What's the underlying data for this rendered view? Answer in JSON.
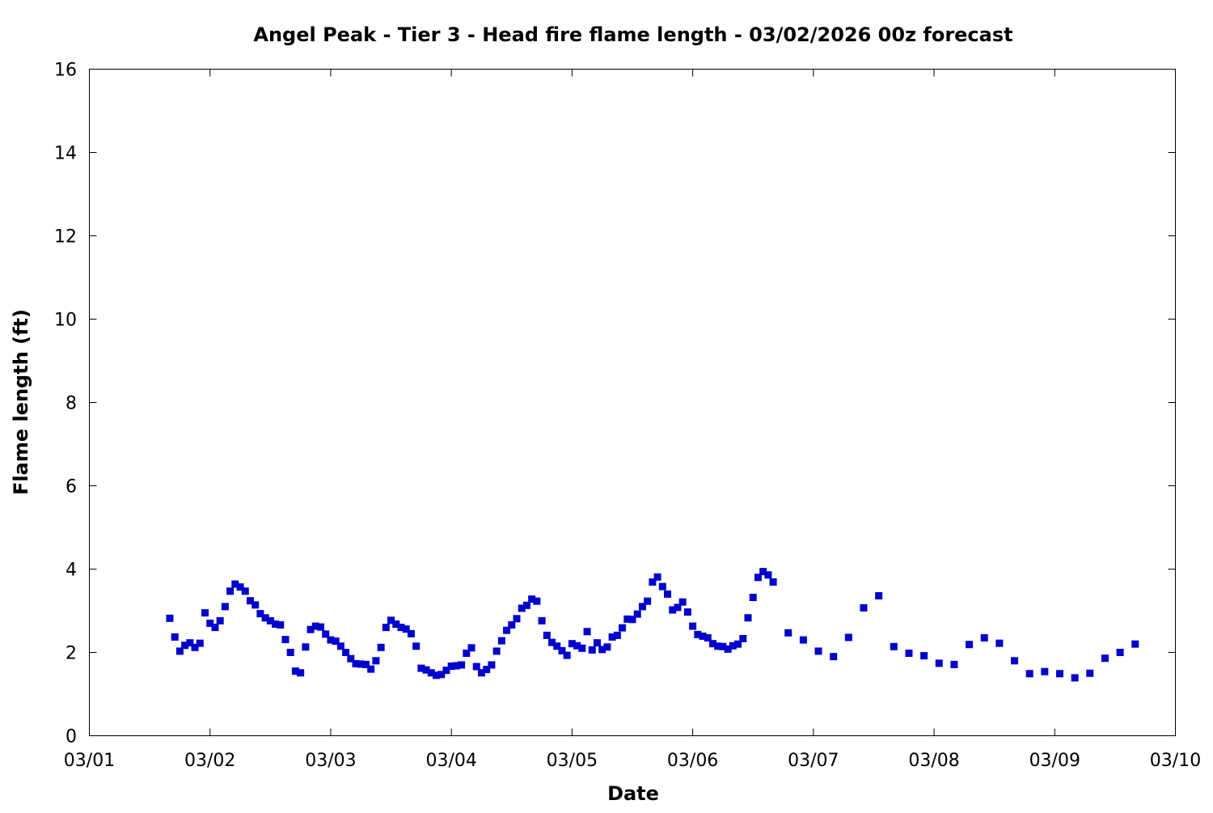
{
  "chart_data": {
    "type": "scatter",
    "title": "Angel Peak - Tier 3 - Head fire flame length - 03/02/2026 00z forecast",
    "xlabel": "Date",
    "ylabel": "Flame length (ft)",
    "xlim": [
      "03/01",
      "03/10"
    ],
    "ylim": [
      0,
      16
    ],
    "x_ticks": [
      "03/01",
      "03/02",
      "03/03",
      "03/04",
      "03/05",
      "03/06",
      "03/07",
      "03/08",
      "03/09",
      "03/10"
    ],
    "y_ticks": [
      "0",
      "2",
      "4",
      "6",
      "8",
      "10",
      "12",
      "14",
      "16"
    ],
    "grid": false,
    "legend": "none",
    "marker_color": "#0000cc",
    "series": [
      {
        "x": [
          "03/01 16:00",
          "03/01 17:00",
          "03/01 18:00",
          "03/01 19:00",
          "03/01 20:00",
          "03/01 21:00",
          "03/01 22:00",
          "03/01 23:00",
          "03/02 00:00",
          "03/02 01:00",
          "03/02 02:00",
          "03/02 03:00",
          "03/02 04:00",
          "03/02 05:00",
          "03/02 06:00",
          "03/02 07:00",
          "03/02 08:00",
          "03/02 09:00",
          "03/02 10:00",
          "03/02 11:00",
          "03/02 12:00",
          "03/02 13:00",
          "03/02 14:00",
          "03/02 15:00",
          "03/02 16:00",
          "03/02 17:00",
          "03/02 18:00",
          "03/02 19:00",
          "03/02 20:00",
          "03/02 21:00",
          "03/02 22:00",
          "03/02 23:00",
          "03/03 00:00",
          "03/03 01:00",
          "03/03 02:00",
          "03/03 03:00",
          "03/03 04:00",
          "03/03 05:00",
          "03/03 06:00",
          "03/03 07:00",
          "03/03 08:00",
          "03/03 09:00",
          "03/03 10:00",
          "03/03 11:00",
          "03/03 12:00",
          "03/03 13:00",
          "03/03 14:00",
          "03/03 15:00",
          "03/03 16:00",
          "03/03 17:00",
          "03/03 18:00",
          "03/03 19:00",
          "03/03 20:00",
          "03/03 21:00",
          "03/03 22:00",
          "03/03 23:00",
          "03/04 00:00",
          "03/04 01:00",
          "03/04 02:00",
          "03/04 03:00",
          "03/04 04:00",
          "03/04 05:00",
          "03/04 06:00",
          "03/04 07:00",
          "03/04 08:00",
          "03/04 09:00",
          "03/04 10:00",
          "03/04 11:00",
          "03/04 12:00",
          "03/04 13:00",
          "03/04 14:00",
          "03/04 15:00",
          "03/04 16:00",
          "03/04 17:00",
          "03/04 18:00",
          "03/04 19:00",
          "03/04 20:00",
          "03/04 21:00",
          "03/04 22:00",
          "03/04 23:00",
          "03/05 00:00",
          "03/05 01:00",
          "03/05 02:00",
          "03/05 03:00",
          "03/05 04:00",
          "03/05 05:00",
          "03/05 06:00",
          "03/05 07:00",
          "03/05 08:00",
          "03/05 09:00",
          "03/05 10:00",
          "03/05 11:00",
          "03/05 12:00",
          "03/05 13:00",
          "03/05 14:00",
          "03/05 15:00",
          "03/05 16:00",
          "03/05 17:00",
          "03/05 18:00",
          "03/05 19:00",
          "03/05 20:00",
          "03/05 21:00",
          "03/05 22:00",
          "03/05 23:00",
          "03/06 00:00",
          "03/06 01:00",
          "03/06 02:00",
          "03/06 03:00",
          "03/06 04:00",
          "03/06 05:00",
          "03/06 06:00",
          "03/06 07:00",
          "03/06 08:00",
          "03/06 09:00",
          "03/06 10:00",
          "03/06 11:00",
          "03/06 12:00",
          "03/06 13:00",
          "03/06 14:00",
          "03/06 15:00",
          "03/06 16:00",
          "03/06 19:00",
          "03/06 22:00",
          "03/07 01:00",
          "03/07 04:00",
          "03/07 07:00",
          "03/07 10:00",
          "03/07 13:00",
          "03/07 16:00",
          "03/07 19:00",
          "03/07 22:00",
          "03/08 01:00",
          "03/08 04:00",
          "03/08 07:00",
          "03/08 10:00",
          "03/08 13:00",
          "03/08 16:00",
          "03/08 19:00",
          "03/08 22:00",
          "03/09 01:00",
          "03/09 04:00",
          "03/09 07:00",
          "03/09 10:00",
          "03/09 13:00",
          "03/09 16:00"
        ],
        "y": [
          2.82,
          2.37,
          2.03,
          2.17,
          2.23,
          2.12,
          2.22,
          2.95,
          2.7,
          2.6,
          2.76,
          3.1,
          3.47,
          3.64,
          3.57,
          3.47,
          3.24,
          3.14,
          2.93,
          2.83,
          2.76,
          2.68,
          2.66,
          2.31,
          2.0,
          1.55,
          1.51,
          2.13,
          2.55,
          2.63,
          2.61,
          2.44,
          2.3,
          2.27,
          2.15,
          2.0,
          1.85,
          1.73,
          1.72,
          1.71,
          1.6,
          1.8,
          2.12,
          2.6,
          2.77,
          2.68,
          2.6,
          2.56,
          2.45,
          2.15,
          1.62,
          1.58,
          1.51,
          1.45,
          1.47,
          1.57,
          1.67,
          1.68,
          1.7,
          1.98,
          2.11,
          1.66,
          1.51,
          1.59,
          1.7,
          2.03,
          2.28,
          2.53,
          2.66,
          2.81,
          3.06,
          3.13,
          3.28,
          3.23,
          2.76,
          2.41,
          2.24,
          2.15,
          2.04,
          1.93,
          2.21,
          2.16,
          2.1,
          2.5,
          2.06,
          2.23,
          2.07,
          2.13,
          2.37,
          2.41,
          2.59,
          2.8,
          2.79,
          2.92,
          3.1,
          3.23,
          3.69,
          3.81,
          3.58,
          3.4,
          3.02,
          3.08,
          3.21,
          2.97,
          2.63,
          2.43,
          2.39,
          2.35,
          2.21,
          2.15,
          2.14,
          2.08,
          2.16,
          2.2,
          2.33,
          2.83,
          3.32,
          3.8,
          3.94,
          3.86,
          3.69,
          2.47,
          2.3,
          2.03,
          1.9,
          2.36,
          3.07,
          3.36,
          2.14,
          1.98,
          1.92,
          1.74,
          1.71,
          2.19,
          2.35,
          2.22,
          1.8,
          1.49,
          1.54,
          1.49,
          1.39,
          1.5,
          1.86,
          2.0,
          2.2
        ]
      }
    ]
  }
}
